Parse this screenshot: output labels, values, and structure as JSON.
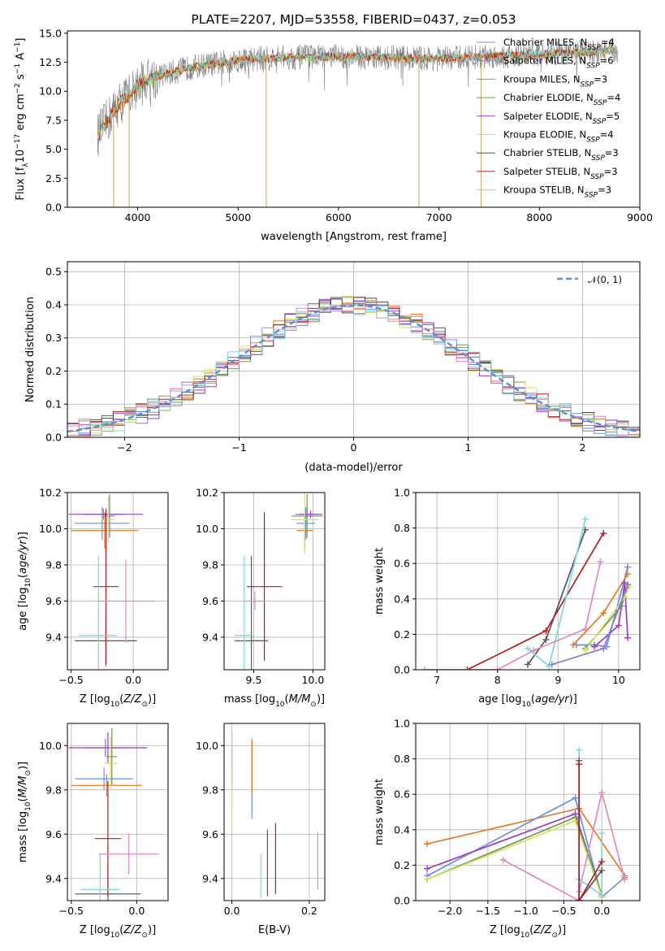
{
  "figure": {
    "title": "PLATE=2207, MJD=53558, FIBERID=0437, z=0.053"
  },
  "colors": {
    "Chabrier MILES": "#6a8fe0",
    "Salpeter MILES": "#8c78c8",
    "Kroupa MILES": "#e07b2a",
    "Chabrier ELODIE": "#6a9a4a",
    "Salpeter ELODIE": "#9b3cc2",
    "Kroupa ELODIE": "#d8e060",
    "Chabrier STELIB": "#555555",
    "Salpeter STELIB": "#b01e1e",
    "Kroupa STELIB": "#7fd6e0",
    "observed": "#808080",
    "pink": "#e088c0",
    "gaussian": "#5b8fd6"
  },
  "chart_data": [
    {
      "panel": "spectrum",
      "type": "line",
      "title": "PLATE=2207, MJD=53558, FIBERID=0437, z=0.053",
      "xlabel": "wavelength [Angstrom, rest frame]",
      "ylabel": "Flux [f_λ 10^-17 erg cm^-2 s^-1 A^-1]",
      "xlim": [
        3300,
        9000
      ],
      "ylim": [
        0,
        15.2
      ],
      "xticks": [
        4000,
        5000,
        6000,
        7000,
        8000,
        9000
      ],
      "yticks": [
        0.0,
        2.5,
        5.0,
        7.5,
        10.0,
        12.5,
        15.0
      ],
      "legend_loc": "right",
      "legend": [
        {
          "label": "Chabrier MILES, N",
          "nssp": "=4",
          "model": "Chabrier MILES"
        },
        {
          "label": "Salpeter MILES, N",
          "nssp": "=6",
          "model": "Salpeter MILES"
        },
        {
          "label": "Kroupa MILES, N",
          "nssp": "=3",
          "model": "Kroupa MILES"
        },
        {
          "label": "Chabrier ELODIE, N",
          "nssp": "=4",
          "model": "Chabrier ELODIE"
        },
        {
          "label": "Salpeter ELODIE, N",
          "nssp": "=5",
          "model": "Salpeter ELODIE"
        },
        {
          "label": "Kroupa ELODIE, N",
          "nssp": "=4",
          "model": "Kroupa ELODIE"
        },
        {
          "label": "Chabrier STELIB, N",
          "nssp": "=3",
          "model": "Chabrier STELIB"
        },
        {
          "label": "Salpeter STELIB, N",
          "nssp": "=3",
          "model": "Salpeter STELIB"
        },
        {
          "label": "Kroupa STELIB, N",
          "nssp": "=3",
          "model": "Kroupa STELIB"
        }
      ],
      "continuum": {
        "x": [
          3600,
          3700,
          3800,
          3900,
          4000,
          4100,
          4300,
          4500,
          4800,
          5000,
          5200,
          5500,
          6000,
          6500,
          7000,
          7500,
          8000,
          8500,
          8800
        ],
        "y": [
          6.2,
          7.5,
          8.8,
          9.6,
          10.5,
          11.0,
          11.5,
          12.0,
          12.4,
          12.7,
          12.8,
          12.9,
          13.0,
          12.9,
          12.8,
          13.0,
          13.2,
          13.4,
          13.5
        ]
      },
      "spikes": [
        {
          "x": 3760,
          "ymin": 0,
          "ymax": 9.5
        },
        {
          "x": 3915,
          "ymin": 0,
          "ymax": 10.0
        },
        {
          "x": 5280,
          "ymin": 0,
          "ymax": 12.5
        },
        {
          "x": 6800,
          "ymin": 0,
          "ymax": 12.5
        },
        {
          "x": 7420,
          "ymin": 0,
          "ymax": 13.0
        }
      ]
    },
    {
      "panel": "residuals",
      "type": "line",
      "xlabel": "(data-model)/error",
      "ylabel": "Normed distribution",
      "xlim": [
        -2.5,
        2.5
      ],
      "ylim": [
        0,
        0.53
      ],
      "xticks": [
        -2,
        -1,
        0,
        1,
        2
      ],
      "yticks": [
        0.0,
        0.1,
        0.2,
        0.3,
        0.4,
        0.5
      ],
      "grid": true,
      "legend": [
        {
          "label": "𝒩(0, 1)",
          "style": "dashed"
        }
      ],
      "legend_loc": "top-right"
    },
    {
      "panel": "age-vs-Z",
      "type": "errorbar",
      "xlabel": "Z [log10(Z/Z⊙)]",
      "ylabel": "age [log10(age/yr)]",
      "xlim": [
        -0.53,
        0.28
      ],
      "ylim": [
        9.22,
        10.2
      ],
      "xticks": [
        -0.5,
        0.0
      ],
      "yticks": [
        9.4,
        9.6,
        9.8,
        10.0,
        10.2
      ],
      "grid": true,
      "points": [
        {
          "model": "Chabrier MILES",
          "x": -0.25,
          "y": 10.03,
          "xerr": 0.22,
          "yerr": 0.09
        },
        {
          "model": "Salpeter MILES",
          "x": -0.24,
          "y": 10.08,
          "xerr": 0.16,
          "yerr": 0.03
        },
        {
          "model": "Kroupa MILES",
          "x": -0.23,
          "y": 9.99,
          "xerr": 0.27,
          "yerr": 0.1
        },
        {
          "model": "Chabrier ELODIE",
          "x": -0.19,
          "y": 10.07,
          "xerr": 0.04,
          "yerr": 0.12
        },
        {
          "model": "Salpeter ELODIE",
          "x": -0.22,
          "y": 10.08,
          "xerr": 0.3,
          "yerr": 0.02
        },
        {
          "model": "Kroupa ELODIE",
          "x": -0.2,
          "y": 10.05,
          "xerr": 0.05,
          "yerr": 0.13
        },
        {
          "model": "Chabrier STELIB",
          "x": -0.22,
          "y": 9.38,
          "xerr": 0.25,
          "yerr": 0.14
        },
        {
          "model": "Salpeter STELIB",
          "x": -0.22,
          "y": 9.68,
          "xerr": 0.1,
          "yerr": 0.43
        },
        {
          "model": "Kroupa STELIB",
          "x": -0.28,
          "y": 9.41,
          "xerr": 0.15,
          "yerr": 0.44
        },
        {
          "model": "pink",
          "x": -0.06,
          "y": 9.6,
          "xerr": 0.23,
          "yerr": 0.23
        }
      ]
    },
    {
      "panel": "age-vs-mass",
      "type": "errorbar",
      "xlabel": "mass [log10(M/M⊙)]",
      "xlim": [
        9.25,
        10.1
      ],
      "ylim": [
        9.22,
        10.2
      ],
      "xticks": [
        9.5,
        10.0
      ],
      "yticks": [
        9.4,
        9.6,
        9.8,
        10.0,
        10.2
      ],
      "grid": true,
      "points": [
        {
          "model": "Chabrier MILES",
          "x": 9.94,
          "y": 10.03,
          "xerr": 0.08,
          "yerr": 0.09
        },
        {
          "model": "Salpeter MILES",
          "x": 9.95,
          "y": 10.08,
          "xerr": 0.1,
          "yerr": 0.03
        },
        {
          "model": "Kroupa MILES",
          "x": 9.93,
          "y": 9.99,
          "xerr": 0.07,
          "yerr": 0.1
        },
        {
          "model": "Chabrier ELODIE",
          "x": 9.95,
          "y": 10.07,
          "xerr": 0.13,
          "yerr": 0.12
        },
        {
          "model": "Salpeter ELODIE",
          "x": 9.98,
          "y": 10.08,
          "xerr": 0.1,
          "yerr": 0.02
        },
        {
          "model": "Kroupa ELODIE",
          "x": 9.93,
          "y": 10.05,
          "xerr": 0.12,
          "yerr": 0.19
        },
        {
          "model": "Chabrier STELIB",
          "x": 9.48,
          "y": 9.38,
          "xerr": 0.14,
          "yerr": 0.47
        },
        {
          "model": "Salpeter STELIB",
          "x": 9.59,
          "y": 9.68,
          "xerr": 0.15,
          "yerr": 0.41
        },
        {
          "model": "Kroupa STELIB",
          "x": 9.42,
          "y": 9.41,
          "xerr": 0.08,
          "yerr": 0.44
        },
        {
          "model": "pink",
          "x": 9.51,
          "y": 9.6,
          "xerr": 0.09,
          "yerr": 0.05
        }
      ]
    },
    {
      "panel": "weight-vs-age",
      "type": "line",
      "xlabel": "age [log10(age/yr)]",
      "ylabel": "mass weight",
      "xlim": [
        6.65,
        10.35
      ],
      "ylim": [
        0,
        1.0
      ],
      "xticks": [
        7,
        8,
        9,
        10
      ],
      "yticks": [
        0.0,
        0.2,
        0.4,
        0.6,
        0.8,
        1.0
      ],
      "grid": true,
      "series": [
        {
          "model": "Chabrier STELIB",
          "x": [
            8.5,
            8.8,
            9.45
          ],
          "y": [
            0.03,
            0.17,
            0.79
          ]
        },
        {
          "model": "Salpeter STELIB",
          "x": [
            7.5,
            8.8,
            9.75
          ],
          "y": [
            0.0,
            0.22,
            0.77
          ]
        },
        {
          "model": "Kroupa STELIB",
          "x": [
            8.5,
            8.85,
            9.45
          ],
          "y": [
            0.12,
            0.02,
            0.85
          ]
        },
        {
          "model": "pink",
          "x": [
            6.8,
            8.0,
            8.6,
            9.45,
            9.7
          ],
          "y": [
            0.0,
            0.0,
            0.11,
            0.23,
            0.61
          ]
        },
        {
          "model": "Chabrier MILES",
          "x": [
            9.3,
            9.6,
            9.8,
            10.15
          ],
          "y": [
            0.14,
            0.14,
            0.13,
            0.58
          ]
        },
        {
          "model": "Kroupa MILES",
          "x": [
            9.25,
            9.75,
            10.15
          ],
          "y": [
            0.14,
            0.32,
            0.54
          ]
        },
        {
          "model": "Salpeter ELODIE",
          "x": [
            9.6,
            10.0,
            10.1,
            10.15
          ],
          "y": [
            0.13,
            0.25,
            0.49,
            0.18
          ]
        },
        {
          "model": "Chabrier ELODIE",
          "x": [
            9.45,
            10.05,
            10.15
          ],
          "y": [
            0.12,
            0.36,
            0.48
          ]
        },
        {
          "model": "Kroupa ELODIE",
          "x": [
            9.45,
            10.1,
            10.18
          ],
          "y": [
            0.11,
            0.41,
            0.47
          ]
        },
        {
          "model": "Salpeter MILES",
          "x": [
            8.9,
            9.75,
            10.15
          ],
          "y": [
            0.03,
            0.12,
            0.48
          ]
        }
      ]
    },
    {
      "panel": "mass-vs-Z",
      "type": "errorbar",
      "xlabel": "Z [log10(Z/Z⊙)]",
      "ylabel": "mass [log10(M/M⊙)]",
      "xlim": [
        -0.53,
        0.24
      ],
      "ylim": [
        9.3,
        10.1
      ],
      "xticks": [
        -0.5,
        0.0
      ],
      "yticks": [
        9.4,
        9.6,
        9.8,
        10.0
      ],
      "grid": true,
      "points": [
        {
          "model": "Chabrier MILES",
          "x": -0.25,
          "y": 9.85,
          "xerr": 0.22,
          "yerr": 0.05
        },
        {
          "model": "Salpeter MILES",
          "x": -0.24,
          "y": 9.99,
          "xerr": 0.16,
          "yerr": 0.04
        },
        {
          "model": "Kroupa MILES",
          "x": -0.23,
          "y": 9.82,
          "xerr": 0.27,
          "yerr": 0.05
        },
        {
          "model": "Chabrier ELODIE",
          "x": -0.19,
          "y": 9.95,
          "xerr": 0.04,
          "yerr": 0.13
        },
        {
          "model": "Salpeter ELODIE",
          "x": -0.22,
          "y": 9.99,
          "xerr": 0.3,
          "yerr": 0.07
        },
        {
          "model": "Kroupa ELODIE",
          "x": -0.2,
          "y": 9.92,
          "xerr": 0.05,
          "yerr": 0.12
        },
        {
          "model": "Chabrier STELIB",
          "x": -0.22,
          "y": 9.33,
          "xerr": 0.25,
          "yerr": 0.14
        },
        {
          "model": "Salpeter STELIB",
          "x": -0.22,
          "y": 9.58,
          "xerr": 0.1,
          "yerr": 0.26
        },
        {
          "model": "Kroupa STELIB",
          "x": -0.28,
          "y": 9.35,
          "xerr": 0.15,
          "yerr": 0.16
        },
        {
          "model": "pink",
          "x": -0.06,
          "y": 9.51,
          "xerr": 0.23,
          "yerr": 0.09
        }
      ]
    },
    {
      "panel": "mass-vs-EBV",
      "type": "errorbar",
      "xlabel": "E(B-V)",
      "xlim": [
        -0.02,
        0.24
      ],
      "ylim": [
        9.3,
        10.1
      ],
      "xticks": [
        0.0,
        0.2
      ],
      "yticks": [
        9.4,
        9.6,
        9.8,
        10.0
      ],
      "grid": true,
      "points": [
        {
          "model": "Chabrier MILES",
          "x": 0.052,
          "y": 9.85,
          "yerr": 0.18
        },
        {
          "model": "Salpeter MILES",
          "x": 0.0,
          "y": 9.95,
          "yerr": 0.12
        },
        {
          "model": "Kroupa MILES",
          "x": 0.052,
          "y": 9.9,
          "yerr": 0.12
        },
        {
          "model": "Chabrier ELODIE",
          "x": 0.0,
          "y": 9.85,
          "yerr": 0.12
        },
        {
          "model": "Salpeter ELODIE",
          "x": 0.0,
          "y": 9.98,
          "yerr": 0.08
        },
        {
          "model": "Kroupa ELODIE",
          "x": 0.0,
          "y": 9.85,
          "yerr": 0.22
        },
        {
          "model": "Chabrier STELIB",
          "x": 0.092,
          "y": 9.47,
          "yerr": 0.15
        },
        {
          "model": "Salpeter STELIB",
          "x": 0.113,
          "y": 9.49,
          "yerr": 0.16
        },
        {
          "model": "Kroupa STELIB",
          "x": 0.075,
          "y": 9.41,
          "yerr": 0.1
        },
        {
          "model": "pink",
          "x": 0.222,
          "y": 9.48,
          "yerr": 0.13
        }
      ]
    },
    {
      "panel": "weight-vs-Z",
      "type": "line",
      "xlabel": "Z [log10(Z/Z⊙)]",
      "ylabel": "mass weight",
      "xlim": [
        -2.45,
        0.5
      ],
      "ylim": [
        0,
        1.0
      ],
      "xticks": [
        -2.0,
        -1.5,
        -1.0,
        -0.5,
        0.0
      ],
      "yticks": [
        0.0,
        0.2,
        0.4,
        0.6,
        0.8,
        1.0
      ],
      "grid": true,
      "series": [
        {
          "model": "Kroupa MILES",
          "x": [
            -2.3,
            -0.3,
            0.3
          ],
          "y": [
            0.32,
            0.52,
            0.14
          ]
        },
        {
          "model": "Chabrier MILES",
          "x": [
            -2.3,
            -0.35,
            0.0,
            0.3
          ],
          "y": [
            0.14,
            0.58,
            0.02,
            0.13
          ]
        },
        {
          "model": "Salpeter ELODIE",
          "x": [
            -2.3,
            -0.35,
            0.0
          ],
          "y": [
            0.18,
            0.49,
            0.03
          ]
        },
        {
          "model": "Chabrier ELODIE",
          "x": [
            -2.3,
            -0.35,
            0.0
          ],
          "y": [
            0.12,
            0.47,
            0.03
          ]
        },
        {
          "model": "Kroupa ELODIE",
          "x": [
            -2.3,
            -0.35,
            0.0
          ],
          "y": [
            0.12,
            0.45,
            0.02
          ]
        },
        {
          "model": "pink",
          "x": [
            -1.3,
            -0.3,
            -0.3,
            0.0,
            0.3
          ],
          "y": [
            0.23,
            0.0,
            0.05,
            0.61,
            0.12
          ]
        },
        {
          "model": "Kroupa STELIB",
          "x": [
            -0.3,
            -0.3,
            0.0,
            0.0
          ],
          "y": [
            0.85,
            0.12,
            0.03,
            0.38
          ]
        },
        {
          "model": "Chabrier STELIB",
          "x": [
            -0.3,
            -0.3,
            0.0
          ],
          "y": [
            0.79,
            0.0,
            0.17
          ]
        },
        {
          "model": "Salpeter STELIB",
          "x": [
            -0.3,
            -0.3,
            0.0
          ],
          "y": [
            0.77,
            0.0,
            0.22
          ]
        }
      ]
    }
  ]
}
